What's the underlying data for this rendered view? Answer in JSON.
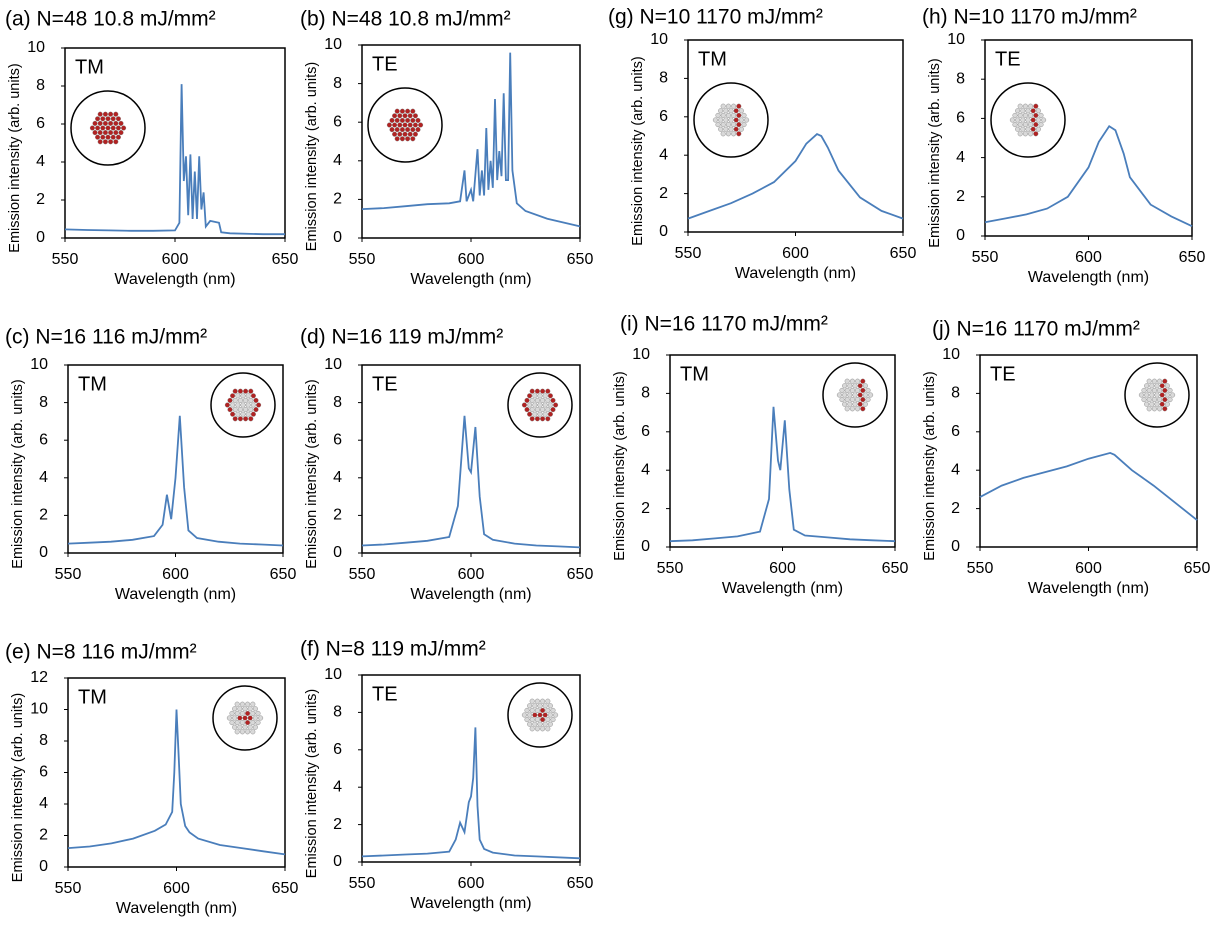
{
  "chart_data": [
    {
      "type": "line",
      "title": "(a) N=48  10.8 mJ/mm²",
      "annotation": "TM",
      "xlabel": "Wavelength (nm)",
      "ylabel": "Emission intensity (arb. units)",
      "xlim": [
        550,
        650
      ],
      "xticks": [
        550,
        600,
        650
      ],
      "ylim": [
        0,
        10
      ],
      "yticks": [
        0,
        2,
        4,
        6,
        8,
        10
      ],
      "color": "#4a7ebb",
      "x": [
        550,
        560,
        570,
        580,
        590,
        600,
        602,
        603,
        604,
        605,
        606,
        607,
        608,
        609,
        610,
        611,
        612,
        613,
        614,
        616,
        620,
        621,
        625,
        640,
        650
      ],
      "values": [
        0.45,
        0.42,
        0.4,
        0.38,
        0.38,
        0.4,
        0.8,
        8.1,
        3.0,
        4.3,
        1.2,
        4.4,
        1.0,
        3.5,
        1.0,
        4.3,
        1.5,
        2.4,
        0.6,
        0.9,
        0.8,
        0.3,
        0.25,
        0.2,
        0.2
      ]
    },
    {
      "type": "line",
      "title": "(b) N=48  10.8 mJ/mm²",
      "annotation": "TE",
      "xlabel": "Wavelength (nm)",
      "ylabel": "Emission intensity (arb. units)",
      "xlim": [
        550,
        650
      ],
      "xticks": [
        550,
        600,
        650
      ],
      "ylim": [
        0,
        10
      ],
      "yticks": [
        0,
        2,
        4,
        6,
        8,
        10
      ],
      "color": "#4a7ebb",
      "x": [
        550,
        560,
        570,
        580,
        590,
        595,
        597,
        598,
        600,
        601,
        603,
        604,
        605,
        606,
        607,
        608,
        609,
        610,
        611,
        612,
        613,
        614,
        615,
        616,
        617,
        618,
        619,
        621,
        625,
        635,
        650
      ],
      "values": [
        1.5,
        1.55,
        1.65,
        1.75,
        1.8,
        1.9,
        3.5,
        1.9,
        2.5,
        1.9,
        4.6,
        2.2,
        3.5,
        2.2,
        5.7,
        2.5,
        4.0,
        2.6,
        7.2,
        3.0,
        4.5,
        3.2,
        7.5,
        3.0,
        3.0,
        9.6,
        3.5,
        1.8,
        1.4,
        1.0,
        0.6
      ]
    },
    {
      "type": "line",
      "title": "(c) N=16  116 mJ/mm²",
      "annotation": "TM",
      "xlabel": "Wavelength (nm)",
      "ylabel": "Emission intensity (arb. units)",
      "xlim": [
        550,
        650
      ],
      "xticks": [
        550,
        600,
        650
      ],
      "ylim": [
        0,
        10
      ],
      "yticks": [
        0,
        2,
        4,
        6,
        8,
        10
      ],
      "color": "#4a7ebb",
      "x": [
        550,
        560,
        570,
        580,
        590,
        594,
        596,
        598,
        600,
        602,
        604,
        606,
        610,
        620,
        630,
        640,
        650
      ],
      "values": [
        0.5,
        0.55,
        0.6,
        0.7,
        0.9,
        1.5,
        3.1,
        1.8,
        4,
        7.3,
        3.5,
        1.2,
        0.8,
        0.6,
        0.5,
        0.45,
        0.4
      ]
    },
    {
      "type": "line",
      "title": "(d) N=16 119 mJ/mm²",
      "annotation": "TE",
      "xlabel": "Wavelength (nm)",
      "ylabel": "Emission intensity (arb. units)",
      "xlim": [
        550,
        650
      ],
      "xticks": [
        550,
        600,
        650
      ],
      "ylim": [
        0,
        10
      ],
      "yticks": [
        0,
        2,
        4,
        6,
        8,
        10
      ],
      "color": "#4a7ebb",
      "x": [
        550,
        560,
        570,
        580,
        590,
        594,
        597,
        599,
        600,
        602,
        604,
        606,
        610,
        620,
        630,
        640,
        650
      ],
      "values": [
        0.4,
        0.45,
        0.55,
        0.65,
        0.85,
        2.5,
        7.3,
        4.5,
        4.3,
        6.7,
        3.0,
        1.0,
        0.7,
        0.5,
        0.4,
        0.35,
        0.3
      ]
    },
    {
      "type": "line",
      "title": "(e) N=8  116 mJ/mm²",
      "annotation": "TM",
      "xlabel": "Wavelength (nm)",
      "ylabel": "Emission intensity (arb. units)",
      "xlim": [
        550,
        650
      ],
      "xticks": [
        550,
        600,
        650
      ],
      "ylim": [
        0,
        12
      ],
      "yticks": [
        0,
        2,
        4,
        6,
        8,
        10,
        12
      ],
      "color": "#4a7ebb",
      "x": [
        550,
        560,
        570,
        580,
        590,
        595,
        598,
        599,
        600,
        601,
        602,
        604,
        606,
        610,
        620,
        630,
        640,
        650
      ],
      "values": [
        1.2,
        1.3,
        1.5,
        1.8,
        2.3,
        2.7,
        3.5,
        6,
        10,
        7,
        4,
        2.6,
        2.2,
        1.8,
        1.4,
        1.2,
        1.0,
        0.8
      ]
    },
    {
      "type": "line",
      "title": "(f) N=8  119 mJ/mm²",
      "annotation": "TE",
      "xlabel": "Wavelength (nm)",
      "ylabel": "Emission intensity (arb. units)",
      "xlim": [
        550,
        650
      ],
      "xticks": [
        550,
        600,
        650
      ],
      "ylim": [
        0,
        10
      ],
      "yticks": [
        0,
        2,
        4,
        6,
        8,
        10
      ],
      "color": "#4a7ebb",
      "x": [
        550,
        560,
        570,
        580,
        590,
        593,
        595,
        597,
        599,
        600,
        601,
        602,
        603,
        604,
        606,
        610,
        620,
        630,
        650
      ],
      "values": [
        0.3,
        0.35,
        0.4,
        0.45,
        0.55,
        1.2,
        2.1,
        1.6,
        3.2,
        3.5,
        4.5,
        7.2,
        3.0,
        1.2,
        0.7,
        0.5,
        0.35,
        0.3,
        0.2
      ]
    },
    {
      "type": "line",
      "title": "(g) N=10  1170 mJ/mm²",
      "annotation": "TM",
      "xlabel": "Wavelength (nm)",
      "ylabel": "Emission intensity (arb. units)",
      "xlim": [
        550,
        650
      ],
      "xticks": [
        550,
        600,
        650
      ],
      "ylim": [
        0,
        10
      ],
      "yticks": [
        0,
        2,
        4,
        6,
        8,
        10
      ],
      "color": "#4a7ebb",
      "x": [
        550,
        560,
        570,
        580,
        590,
        600,
        605,
        610,
        612,
        615,
        620,
        630,
        640,
        650
      ],
      "values": [
        0.7,
        1.1,
        1.5,
        2.0,
        2.6,
        3.7,
        4.6,
        5.1,
        5.0,
        4.4,
        3.2,
        1.8,
        1.1,
        0.7
      ]
    },
    {
      "type": "line",
      "title": "(h) N=10  1170 mJ/mm²",
      "annotation": "TE",
      "xlabel": "Wavelength (nm)",
      "ylabel": "Emission intensity (arb. units)",
      "xlim": [
        550,
        650
      ],
      "xticks": [
        550,
        600,
        650
      ],
      "ylim": [
        0,
        10
      ],
      "yticks": [
        0,
        2,
        4,
        6,
        8,
        10
      ],
      "color": "#4a7ebb",
      "x": [
        550,
        560,
        570,
        580,
        590,
        600,
        605,
        610,
        613,
        617,
        620,
        630,
        640,
        650
      ],
      "values": [
        0.7,
        0.9,
        1.1,
        1.4,
        2.0,
        3.5,
        4.8,
        5.6,
        5.4,
        4.2,
        3.0,
        1.6,
        1.0,
        0.5
      ]
    },
    {
      "type": "line",
      "title": "(i) N=16 1170 mJ/mm²",
      "annotation": "TM",
      "xlabel": "Wavelength (nm)",
      "ylabel": "Emission intensity (arb. units)",
      "xlim": [
        550,
        650
      ],
      "xticks": [
        550,
        600,
        650
      ],
      "ylim": [
        0,
        10
      ],
      "yticks": [
        0,
        2,
        4,
        6,
        8,
        10
      ],
      "color": "#4a7ebb",
      "x": [
        550,
        560,
        570,
        580,
        590,
        594,
        596,
        598,
        599,
        601,
        603,
        605,
        610,
        620,
        630,
        640,
        650
      ],
      "values": [
        0.3,
        0.35,
        0.45,
        0.55,
        0.8,
        2.5,
        7.3,
        4.5,
        4.0,
        6.6,
        3.0,
        0.9,
        0.6,
        0.5,
        0.4,
        0.35,
        0.3
      ]
    },
    {
      "type": "line",
      "title": "(j) N=16  1170 mJ/mm²",
      "annotation": "TE",
      "xlabel": "Wavelength (nm)",
      "ylabel": "Emission intensity (arb. units)",
      "xlim": [
        550,
        650
      ],
      "xticks": [
        550,
        600,
        650
      ],
      "ylim": [
        0,
        10
      ],
      "yticks": [
        0,
        2,
        4,
        6,
        8,
        10
      ],
      "color": "#4a7ebb",
      "x": [
        550,
        560,
        570,
        580,
        590,
        600,
        610,
        612,
        620,
        630,
        640,
        650
      ],
      "values": [
        2.6,
        3.2,
        3.6,
        3.9,
        4.2,
        4.6,
        4.9,
        4.8,
        4.0,
        3.2,
        2.3,
        1.4
      ]
    }
  ]
}
